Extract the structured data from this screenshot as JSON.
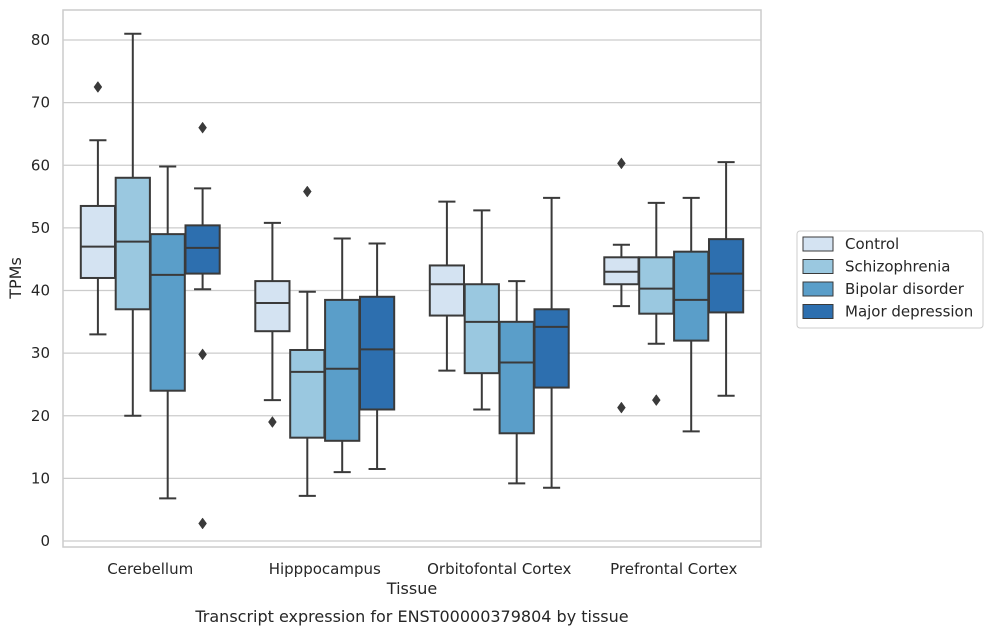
{
  "chart_data": {
    "type": "box",
    "title": "",
    "caption": "Transcript expression for ENST00000379804 by tissue",
    "xlabel": "Tissue",
    "ylabel": "TPMs",
    "ylim": [
      -1,
      85
    ],
    "yticks": [
      0,
      10,
      20,
      30,
      40,
      50,
      60,
      70,
      80
    ],
    "grid": "horizontal",
    "legend_position": "right",
    "categories": [
      "Cerebellum",
      "Hipppocampus",
      "Orbitofontal Cortex",
      "Prefrontal Cortex"
    ],
    "series": [
      {
        "name": "Control",
        "color": "#d4e3f2",
        "boxes": [
          {
            "whisker_low": 33,
            "q1": 42,
            "median": 47,
            "q3": 53.5,
            "whisker_high": 64,
            "outliers": [
              72.5
            ]
          },
          {
            "whisker_low": 22.5,
            "q1": 33.5,
            "median": 38,
            "q3": 41.5,
            "whisker_high": 50.8,
            "outliers": [
              19
            ]
          },
          {
            "whisker_low": 27.2,
            "q1": 36,
            "median": 41,
            "q3": 44,
            "whisker_high": 54.2,
            "outliers": []
          },
          {
            "whisker_low": 37.5,
            "q1": 41,
            "median": 43,
            "q3": 45.3,
            "whisker_high": 47.3,
            "outliers": [
              60.3,
              21.3
            ]
          }
        ]
      },
      {
        "name": "Schizophrenia",
        "color": "#9ac8e0",
        "boxes": [
          {
            "whisker_low": 20,
            "q1": 37,
            "median": 47.8,
            "q3": 58,
            "whisker_high": 81,
            "outliers": []
          },
          {
            "whisker_low": 7.2,
            "q1": 16.5,
            "median": 27,
            "q3": 30.5,
            "whisker_high": 39.8,
            "outliers": [
              55.8
            ]
          },
          {
            "whisker_low": 21,
            "q1": 26.8,
            "median": 35,
            "q3": 41,
            "whisker_high": 52.8,
            "outliers": []
          },
          {
            "whisker_low": 31.5,
            "q1": 36.3,
            "median": 40.3,
            "q3": 45.3,
            "whisker_high": 54,
            "outliers": [
              22.5
            ]
          }
        ]
      },
      {
        "name": "Bipolar disorder",
        "color": "#5a9ec9",
        "boxes": [
          {
            "whisker_low": 6.8,
            "q1": 24,
            "median": 42.5,
            "q3": 49,
            "whisker_high": 59.8,
            "outliers": []
          },
          {
            "whisker_low": 11,
            "q1": 16,
            "median": 27.5,
            "q3": 38.5,
            "whisker_high": 48.3,
            "outliers": []
          },
          {
            "whisker_low": 9.2,
            "q1": 17.2,
            "median": 28.5,
            "q3": 35,
            "whisker_high": 41.5,
            "outliers": []
          },
          {
            "whisker_low": 17.5,
            "q1": 32,
            "median": 38.5,
            "q3": 46.2,
            "whisker_high": 54.8,
            "outliers": []
          }
        ]
      },
      {
        "name": "Major depression",
        "color": "#2d6faf",
        "boxes": [
          {
            "whisker_low": 40.2,
            "q1": 42.7,
            "median": 46.8,
            "q3": 50.4,
            "whisker_high": 56.3,
            "outliers": [
              66,
              29.8,
              2.8
            ]
          },
          {
            "whisker_low": 11.5,
            "q1": 21,
            "median": 30.6,
            "q3": 39,
            "whisker_high": 47.5,
            "outliers": []
          },
          {
            "whisker_low": 8.5,
            "q1": 24.5,
            "median": 34.2,
            "q3": 37,
            "whisker_high": 54.8,
            "outliers": []
          },
          {
            "whisker_low": 23.2,
            "q1": 36.5,
            "median": 42.7,
            "q3": 48.2,
            "whisker_high": 60.5,
            "outliers": []
          }
        ]
      }
    ]
  }
}
